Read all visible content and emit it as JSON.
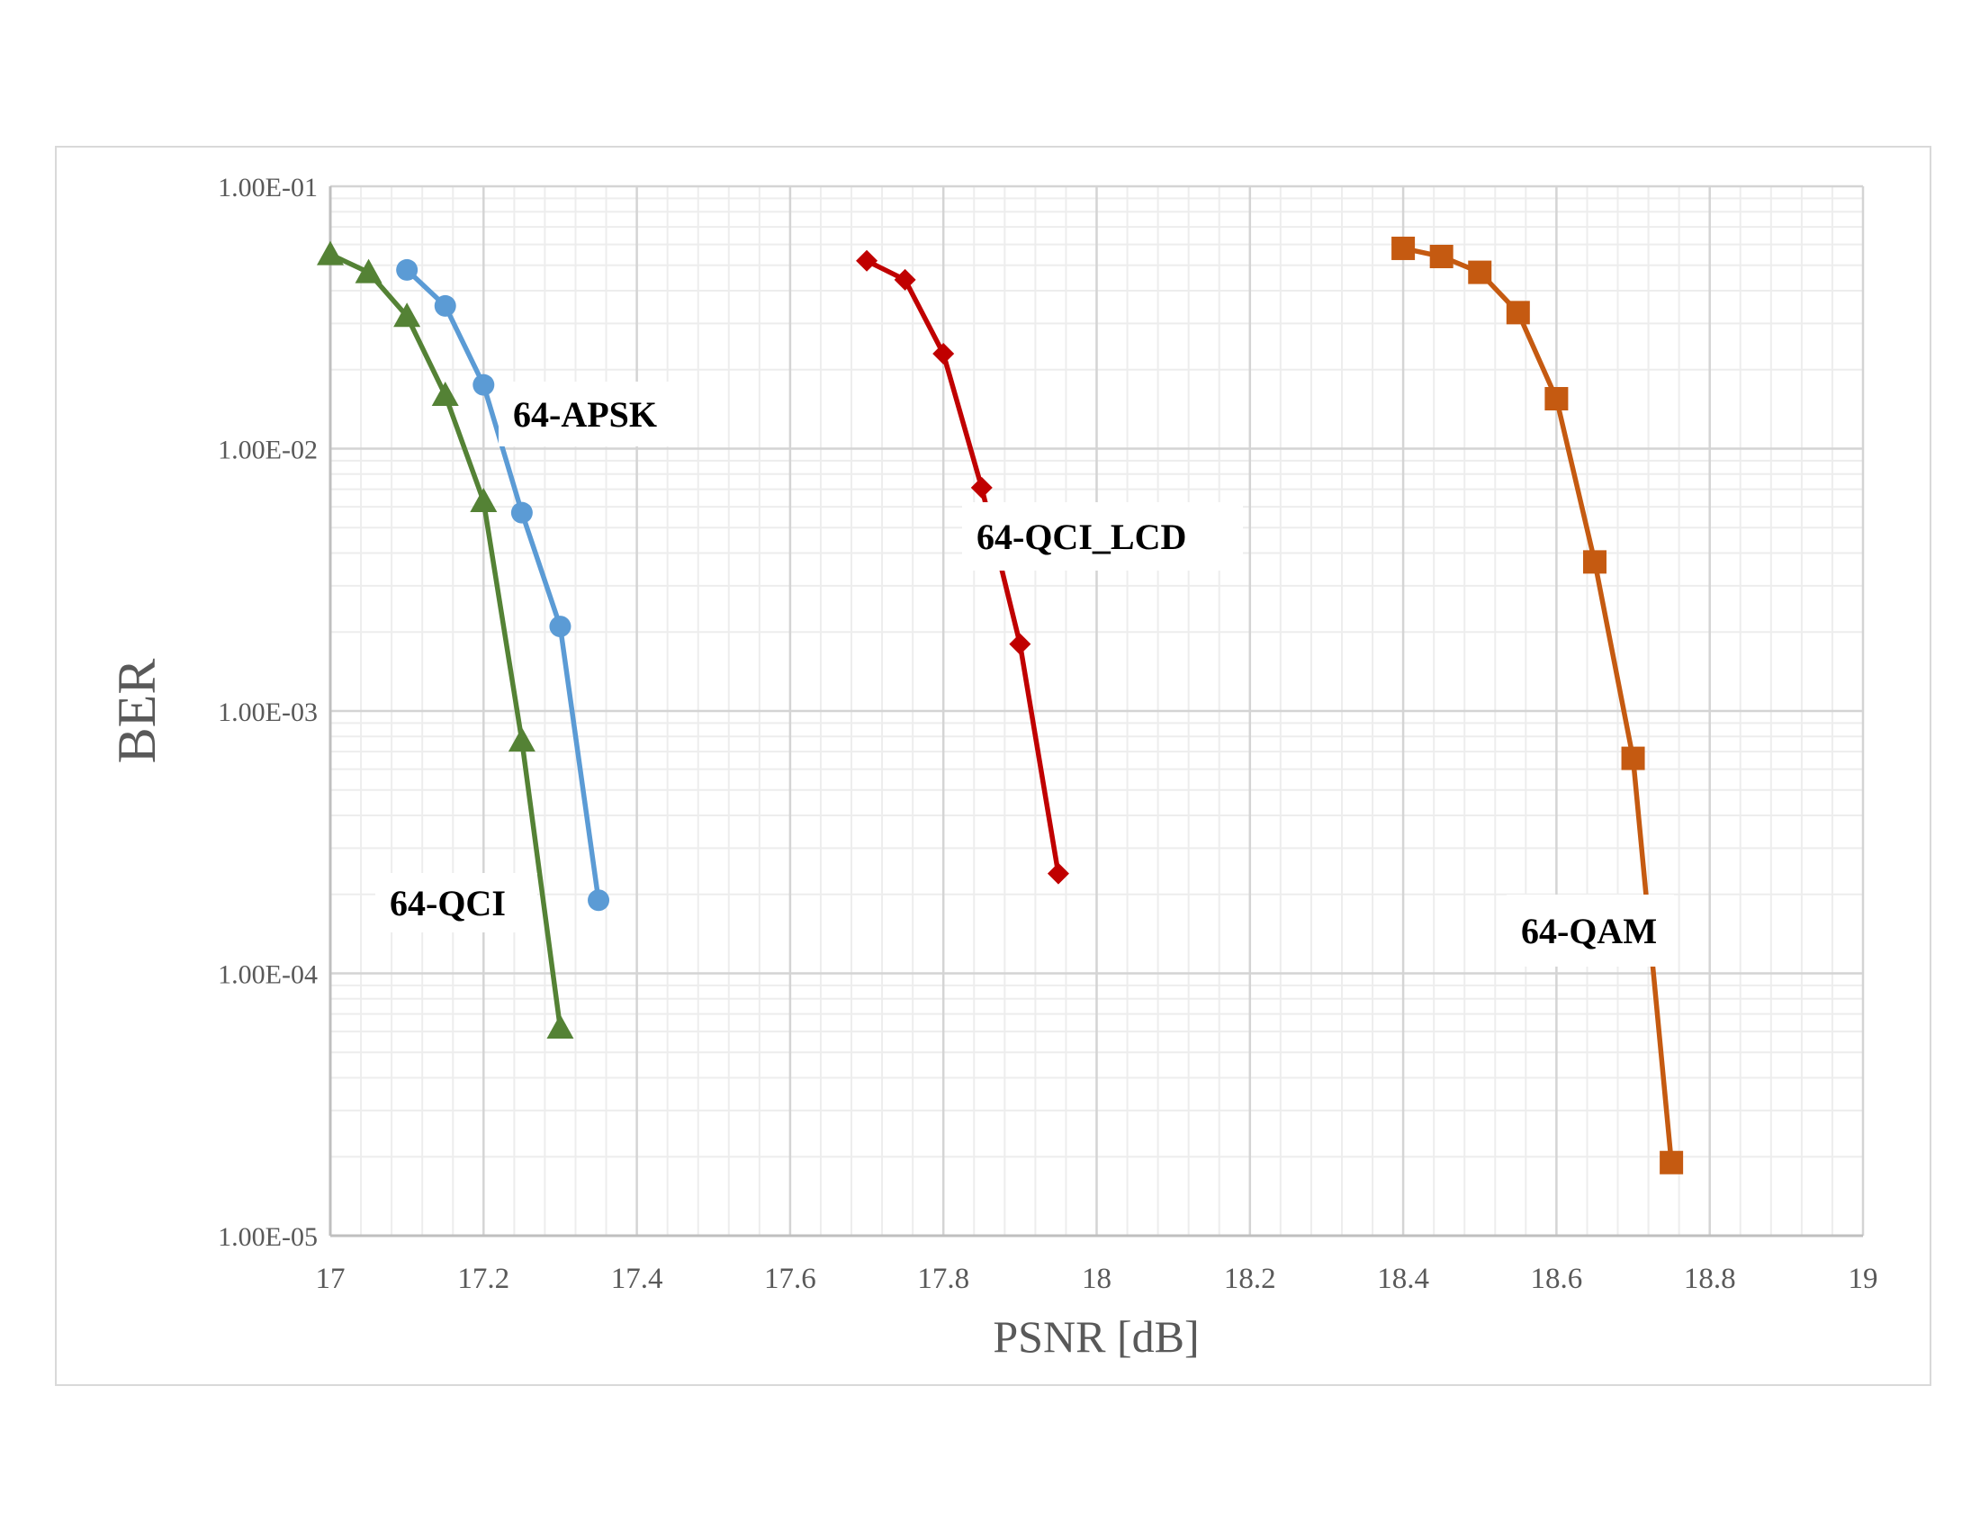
{
  "chart_data": {
    "type": "line",
    "xlabel": "PSNR [dB]",
    "ylabel": "BER",
    "xlim": [
      17,
      19
    ],
    "ylim": [
      1e-05,
      0.1
    ],
    "yscale": "log",
    "grid": true,
    "x_ticks": [
      "17",
      "17.2",
      "17.4",
      "17.6",
      "17.8",
      "18",
      "18.2",
      "18.4",
      "18.6",
      "18.8",
      "19"
    ],
    "y_ticks": [
      "1.00E-01",
      "1.00E-02",
      "1.00E-03",
      "1.00E-04",
      "1.00E-05"
    ],
    "series": [
      {
        "name": "64-QCI",
        "color": "#548235",
        "marker": "triangle",
        "x": [
          17.0,
          17.05,
          17.1,
          17.15,
          17.2,
          17.25,
          17.3
        ],
        "y": [
          0.055,
          0.047,
          0.032,
          0.016,
          0.0063,
          0.00077,
          6.2e-05
        ]
      },
      {
        "name": "64-APSK",
        "color": "#5B9BD5",
        "marker": "circle",
        "x": [
          17.1,
          17.15,
          17.2,
          17.25,
          17.3,
          17.35
        ],
        "y": [
          0.048,
          0.035,
          0.0175,
          0.0057,
          0.0021,
          0.00019
        ]
      },
      {
        "name": "64-QCI_LCD",
        "color": "#C00000",
        "marker": "diamond",
        "x": [
          17.7,
          17.75,
          17.8,
          17.85,
          17.9,
          17.95
        ],
        "y": [
          0.052,
          0.044,
          0.023,
          0.0071,
          0.0018,
          0.00024
        ]
      },
      {
        "name": "64-QAM",
        "color": "#C55A11",
        "marker": "square",
        "x": [
          18.4,
          18.45,
          18.5,
          18.55,
          18.6,
          18.65,
          18.7,
          18.75
        ],
        "y": [
          0.058,
          0.054,
          0.047,
          0.033,
          0.0155,
          0.0037,
          0.00066,
          1.9e-05
        ]
      }
    ]
  }
}
